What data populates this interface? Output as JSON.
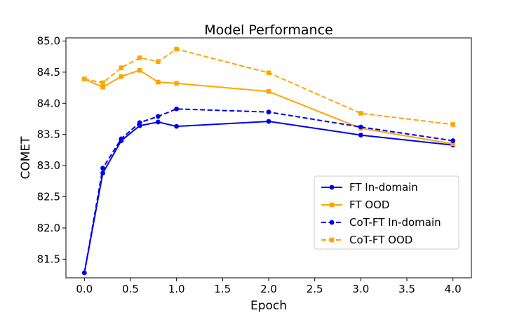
{
  "chart_data": {
    "type": "line",
    "title": "Model Performance",
    "xlabel": "Epoch",
    "ylabel": "COMET",
    "xlim": [
      -0.2,
      4.2
    ],
    "ylim": [
      81.2,
      85.05
    ],
    "xticks": [
      0.0,
      0.5,
      1.0,
      1.5,
      2.0,
      2.5,
      3.0,
      3.5,
      4.0
    ],
    "xtick_labels": [
      "0.0",
      "0.5",
      "1.0",
      "1.5",
      "2.0",
      "2.5",
      "3.0",
      "3.5",
      "4.0"
    ],
    "yticks": [
      81.5,
      82.0,
      82.5,
      83.0,
      83.5,
      84.0,
      84.5,
      85.0
    ],
    "ytick_labels": [
      "81.5",
      "82.0",
      "82.5",
      "83.0",
      "83.5",
      "84.0",
      "84.5",
      "85.0"
    ],
    "grid": false,
    "legend_position": "lower-right",
    "series": [
      {
        "name": "FT In-domain",
        "color": "#0000ee",
        "dash": "solid",
        "marker": "circle",
        "x": [
          0,
          0.2,
          0.4,
          0.6,
          0.8,
          1.0,
          2.0,
          3.0,
          4.0
        ],
        "y": [
          81.28,
          82.88,
          83.4,
          83.64,
          83.7,
          83.63,
          83.71,
          83.49,
          83.33
        ]
      },
      {
        "name": "FT OOD",
        "color": "#ffa500",
        "dash": "solid",
        "marker": "square",
        "x": [
          0,
          0.2,
          0.4,
          0.6,
          0.8,
          1.0,
          2.0,
          3.0,
          4.0
        ],
        "y": [
          84.39,
          84.26,
          84.43,
          84.53,
          84.34,
          84.32,
          84.19,
          83.6,
          83.35
        ]
      },
      {
        "name": "CoT-FT In-domain",
        "color": "#0000ee",
        "dash": "dashed",
        "marker": "circle",
        "x": [
          0,
          0.2,
          0.4,
          0.6,
          0.8,
          1.0,
          2.0,
          3.0,
          4.0
        ],
        "y": [
          81.28,
          82.96,
          83.43,
          83.69,
          83.79,
          83.91,
          83.86,
          83.62,
          83.4
        ]
      },
      {
        "name": "CoT-FT OOD",
        "color": "#ffa500",
        "dash": "dashed",
        "marker": "square",
        "x": [
          0,
          0.2,
          0.4,
          0.6,
          0.8,
          1.0,
          2.0,
          3.0,
          4.0
        ],
        "y": [
          84.39,
          84.33,
          84.57,
          84.73,
          84.67,
          84.87,
          84.49,
          83.84,
          83.66
        ]
      }
    ]
  }
}
